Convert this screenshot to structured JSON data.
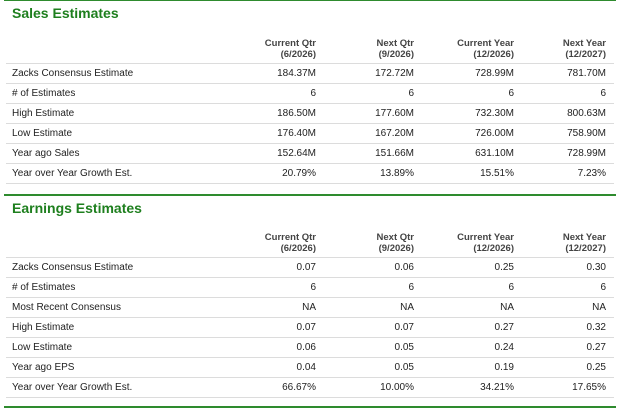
{
  "sales": {
    "title": "Sales Estimates",
    "headers": [
      {
        "line1": "Current Qtr",
        "line2": "(6/2026)"
      },
      {
        "line1": "Next Qtr",
        "line2": "(9/2026)"
      },
      {
        "line1": "Current Year",
        "line2": "(12/2026)"
      },
      {
        "line1": "Next Year",
        "line2": "(12/2027)"
      }
    ],
    "rows": [
      {
        "label": "Zacks Consensus Estimate",
        "values": [
          "184.37M",
          "172.72M",
          "728.99M",
          "781.70M"
        ]
      },
      {
        "label": "# of Estimates",
        "values": [
          "6",
          "6",
          "6",
          "6"
        ]
      },
      {
        "label": "High Estimate",
        "values": [
          "186.50M",
          "177.60M",
          "732.30M",
          "800.63M"
        ]
      },
      {
        "label": "Low Estimate",
        "values": [
          "176.40M",
          "167.20M",
          "726.00M",
          "758.90M"
        ]
      },
      {
        "label": "Year ago Sales",
        "values": [
          "152.64M",
          "151.66M",
          "631.10M",
          "728.99M"
        ]
      },
      {
        "label": "Year over Year Growth Est.",
        "values": [
          "20.79%",
          "13.89%",
          "15.51%",
          "7.23%"
        ]
      }
    ]
  },
  "earnings": {
    "title": "Earnings Estimates",
    "headers": [
      {
        "line1": "Current Qtr",
        "line2": "(6/2026)"
      },
      {
        "line1": "Next Qtr",
        "line2": "(9/2026)"
      },
      {
        "line1": "Current Year",
        "line2": "(12/2026)"
      },
      {
        "line1": "Next Year",
        "line2": "(12/2027)"
      }
    ],
    "rows": [
      {
        "label": "Zacks Consensus Estimate",
        "values": [
          "0.07",
          "0.06",
          "0.25",
          "0.30"
        ]
      },
      {
        "label": "# of Estimates",
        "values": [
          "6",
          "6",
          "6",
          "6"
        ]
      },
      {
        "label": "Most Recent Consensus",
        "values": [
          "NA",
          "NA",
          "NA",
          "NA"
        ]
      },
      {
        "label": "High Estimate",
        "values": [
          "0.07",
          "0.07",
          "0.27",
          "0.32"
        ]
      },
      {
        "label": "Low Estimate",
        "values": [
          "0.06",
          "0.05",
          "0.24",
          "0.27"
        ]
      },
      {
        "label": "Year ago EPS",
        "values": [
          "0.04",
          "0.05",
          "0.19",
          "0.25"
        ]
      },
      {
        "label": "Year over Year Growth Est.",
        "values": [
          "66.67%",
          "10.00%",
          "34.21%",
          "17.65%"
        ]
      }
    ]
  },
  "colors": {
    "accent_green": "#1e7f1e",
    "rule_green": "#2e8b2e",
    "row_border": "#dcdcdc"
  }
}
